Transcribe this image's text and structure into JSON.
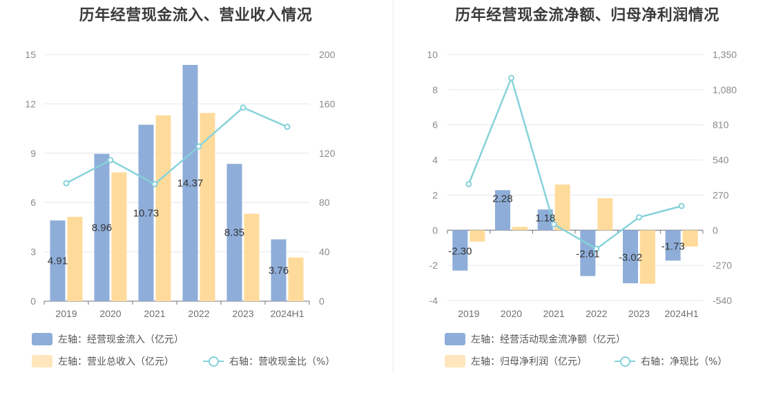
{
  "chart_data": [
    {
      "type": "bar",
      "title": "历年经营现金流入、营业收入情况",
      "categories": [
        "2019",
        "2020",
        "2021",
        "2022",
        "2023",
        "2024H1"
      ],
      "left_axis": {
        "ticks": [
          "0",
          "3",
          "6",
          "9",
          "12",
          "15"
        ],
        "ylim": [
          0,
          15
        ]
      },
      "right_axis": {
        "ticks": [
          "0",
          "40",
          "80",
          "120",
          "160",
          "200"
        ],
        "ylim": [
          0,
          200
        ]
      },
      "grid": true,
      "legend_position": "bottom-left",
      "series": [
        {
          "name": "左轴：经营现金流入（亿元）",
          "kind": "bar",
          "axis": "left",
          "color": "#8eadd9",
          "values": [
            4.91,
            8.96,
            10.73,
            14.37,
            8.35,
            3.76
          ],
          "labels": [
            "4.91",
            "8.96",
            "10.73",
            "14.37",
            "8.35",
            "3.76"
          ]
        },
        {
          "name": "左轴：营业总收入（亿元）",
          "kind": "bar",
          "axis": "left",
          "color": "#ffdb9b",
          "values": [
            5.13,
            7.83,
            11.3,
            11.45,
            5.32,
            2.66
          ]
        },
        {
          "name": "右轴：营收现金比（%）",
          "kind": "line",
          "axis": "right",
          "color": "#86d2da",
          "values": [
            95.7,
            114.4,
            94.9,
            125.5,
            157.0,
            141.4
          ]
        }
      ]
    },
    {
      "type": "bar",
      "title": "历年经营现金流净额、归母净利润情况",
      "categories": [
        "2019",
        "2020",
        "2021",
        "2022",
        "2023",
        "2024H1"
      ],
      "left_axis": {
        "ticks": [
          "-4",
          "-2",
          "0",
          "2",
          "4",
          "6",
          "8",
          "10"
        ],
        "ylim": [
          -4,
          10
        ]
      },
      "right_axis": {
        "ticks": [
          "-540",
          "-270",
          "0",
          "270",
          "540",
          "810",
          "1,080",
          "1,350"
        ],
        "ylim": [
          -540,
          1350
        ]
      },
      "grid": true,
      "legend_position": "bottom-left",
      "series": [
        {
          "name": "左轴：经营活动现金流净额（亿元）",
          "kind": "bar",
          "axis": "left",
          "color": "#8eadd9",
          "values": [
            -2.3,
            2.28,
            1.18,
            -2.61,
            -3.02,
            -1.73
          ],
          "labels": [
            "-2.30",
            "2.28",
            "1.18",
            "-2.61",
            "-3.02",
            "-1.73"
          ]
        },
        {
          "name": "左轴：归母净利润（亿元）",
          "kind": "bar",
          "axis": "left",
          "color": "#ffdb9b",
          "values": [
            -0.65,
            0.19,
            2.6,
            1.82,
            -3.05,
            -0.93
          ]
        },
        {
          "name": "右轴：净现比（%）",
          "kind": "line",
          "axis": "right",
          "color": "#86d2da",
          "values": [
            354,
            1170,
            45,
            -143,
            99,
            186
          ]
        }
      ]
    }
  ]
}
